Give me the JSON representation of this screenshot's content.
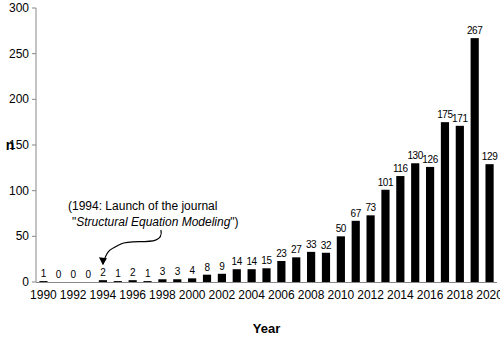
{
  "chart_data": {
    "type": "bar",
    "x_label": "Year",
    "y_label": "n",
    "categories": [
      "1990",
      null,
      "1992",
      null,
      "1994",
      null,
      "1996",
      null,
      "1998",
      null,
      "2000",
      null,
      "2002",
      null,
      "2004",
      null,
      "2006",
      null,
      "2008",
      null,
      "2010",
      null,
      "2012",
      null,
      "2014",
      null,
      "2016",
      null,
      "2018",
      null,
      "2020"
    ],
    "values": [
      1,
      0,
      0,
      0,
      2,
      1,
      2,
      1,
      3,
      3,
      4,
      8,
      9,
      14,
      14,
      15,
      23,
      27,
      33,
      32,
      50,
      67,
      73,
      101,
      116,
      130,
      126,
      175,
      171,
      267,
      129
    ],
    "color": "#000000",
    "ylim": [
      0,
      300
    ],
    "yticks": [
      0,
      50,
      100,
      150,
      200,
      250,
      300
    ],
    "grid": false,
    "data_labels": true,
    "annotation": {
      "lines": [
        "(1994: Launch of the journal",
        "\"",
        "Structural Equation Modeling",
        "\")"
      ],
      "x": "1994"
    }
  }
}
